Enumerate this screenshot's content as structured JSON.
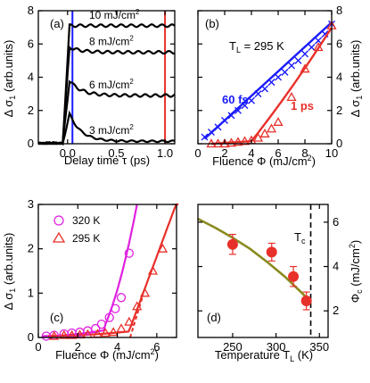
{
  "chart_data": [
    {
      "panel": "(a)",
      "type": "line",
      "xlabel": "Delay time τ (ps)",
      "ylabel": "Δ σ1 (arb.units)",
      "xlim": [
        -0.3,
        1.1
      ],
      "ylim": [
        0,
        8
      ],
      "xticks": [
        "0.0",
        "0.5",
        "1.0"
      ],
      "yticks": [
        "0",
        "2",
        "4",
        "6",
        "8"
      ],
      "vlines": [
        {
          "x": 0.05,
          "color": "#1a1aff"
        },
        {
          "x": 1.0,
          "color": "#e8302a"
        }
      ],
      "series": [
        {
          "name": "10 mJ/cm2",
          "label": "10 mJ/cm",
          "sup": "2",
          "peak": 7.1,
          "plateau": 7.1
        },
        {
          "name": "8 mJ/cm2",
          "label": "8 mJ/cm",
          "sup": "2",
          "peak": 5.8,
          "plateau": 5.5
        },
        {
          "name": "6 mJ/cm2",
          "label": "6 mJ/cm",
          "sup": "2",
          "peak": 3.8,
          "plateau": 2.9
        },
        {
          "name": "3 mJ/cm2",
          "label": "3 mJ/cm",
          "sup": "2",
          "peak": 1.8,
          "plateau": 0.15
        }
      ]
    },
    {
      "panel": "(b)",
      "type": "scatter",
      "annotation": "T",
      "annotation_sub": "L",
      "annotation_rest": " = 295 K",
      "xlabel": "Fluence Φ (mJ/cm2)",
      "ylabel": "Δ σ1 (arb.units)",
      "xlim": [
        0,
        10
      ],
      "ylim": [
        0,
        8
      ],
      "xticks": [
        "0",
        "2",
        "4",
        "6",
        "8",
        "10"
      ],
      "yticks": [
        "0",
        "2",
        "4",
        "6",
        "8"
      ],
      "series": [
        {
          "name": "60 fs",
          "color": "#1a1aff",
          "marker": "x",
          "x": [
            0.5,
            1.0,
            1.5,
            2.0,
            2.5,
            3.0,
            3.5,
            4.0,
            4.5,
            5.0,
            5.5,
            6.0,
            6.5,
            7.0,
            7.5,
            8.0,
            8.5,
            9.0,
            9.5,
            10.0
          ],
          "y": [
            0.4,
            0.7,
            1.0,
            1.4,
            1.7,
            2.0,
            2.3,
            2.6,
            3.0,
            3.3,
            3.7,
            4.0,
            4.3,
            4.7,
            5.0,
            5.4,
            5.8,
            6.2,
            6.6,
            7.2
          ]
        },
        {
          "name": "1 ps",
          "color": "#e8302a",
          "marker": "triangle",
          "x": [
            1.0,
            1.5,
            2.0,
            2.5,
            3.0,
            3.5,
            4.0,
            4.5,
            5.0,
            5.5,
            6.0,
            7.0,
            8.0,
            9.0,
            10.0
          ],
          "y": [
            0.0,
            0.0,
            0.0,
            0.05,
            0.1,
            0.15,
            0.2,
            0.35,
            0.6,
            0.9,
            1.3,
            2.8,
            4.5,
            5.8,
            7.1
          ]
        }
      ]
    },
    {
      "panel": "(c)",
      "type": "scatter",
      "xlabel": "Fluence Φ (mJ/cm2)",
      "ylabel": "Δ σ1 (arb.units)",
      "xlim": [
        0,
        7
      ],
      "ylim": [
        0,
        3
      ],
      "xticks": [
        "0",
        "2",
        "4",
        "6"
      ],
      "yticks": [
        "0",
        "1",
        "2",
        "3"
      ],
      "series": [
        {
          "name": "320 K",
          "color": "#e020e0",
          "marker": "circle",
          "x": [
            0.4,
            0.8,
            1.3,
            1.7,
            2.1,
            2.5,
            2.9,
            3.2,
            3.6,
            3.9,
            4.2,
            4.6
          ],
          "y": [
            0.03,
            0.05,
            0.08,
            0.1,
            0.12,
            0.15,
            0.2,
            0.3,
            0.45,
            0.65,
            0.9,
            1.9
          ]
        },
        {
          "name": "295 K",
          "color": "#e8302a",
          "marker": "triangle",
          "x": [
            0.8,
            1.3,
            1.7,
            2.1,
            2.5,
            3.0,
            3.4,
            3.8,
            4.2,
            4.6,
            5.0,
            5.4,
            5.8,
            6.3
          ],
          "y": [
            0.03,
            0.05,
            0.05,
            0.06,
            0.07,
            0.08,
            0.1,
            0.12,
            0.2,
            0.35,
            0.7,
            1.0,
            1.5,
            2.0
          ]
        }
      ]
    },
    {
      "panel": "(d)",
      "type": "scatter",
      "annotation": "T",
      "annotation_sub": "c",
      "xlabel": "Temperature TL (K)",
      "ylabel": "Φc (mJ/cm2)",
      "xlim": [
        210,
        360
      ],
      "ylim": [
        0.8,
        6.8
      ],
      "xticks": [
        "250",
        "300",
        "350"
      ],
      "yticks": [
        "2",
        "4",
        "6"
      ],
      "vline": 340,
      "series": [
        {
          "name": "Φc",
          "color": "#e8302a",
          "marker": "filled-circle",
          "x": [
            250,
            295,
            320,
            335
          ],
          "y": [
            5.0,
            4.65,
            3.55,
            2.45
          ],
          "err": [
            0.45,
            0.4,
            0.45,
            0.4
          ]
        },
        {
          "name": "fit",
          "color": "#8a8a1e",
          "marker": "line",
          "x": [
            210,
            230,
            250,
            270,
            290,
            310,
            330,
            340
          ],
          "y": [
            6.15,
            5.75,
            5.3,
            4.8,
            4.2,
            3.55,
            2.8,
            2.4
          ]
        }
      ]
    }
  ]
}
